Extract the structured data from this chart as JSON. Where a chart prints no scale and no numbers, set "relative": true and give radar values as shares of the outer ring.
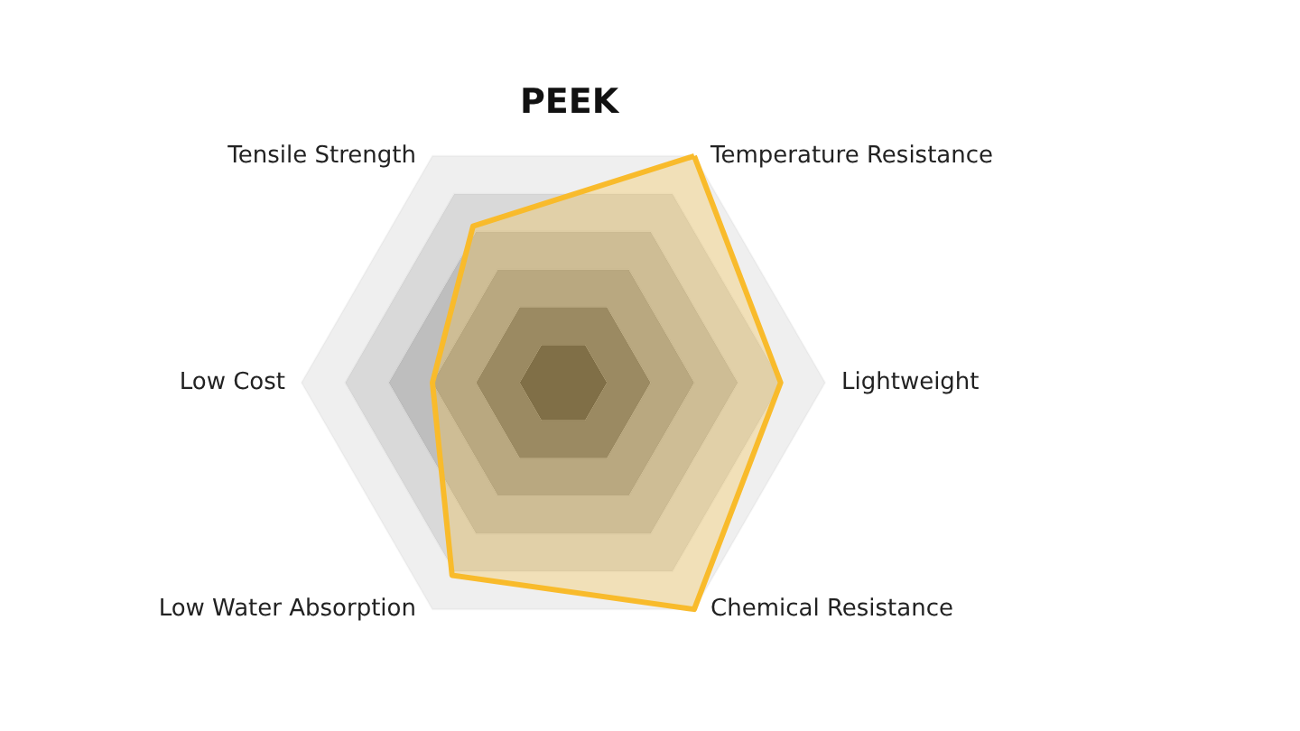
{
  "chart_data": {
    "type": "radar",
    "title": "PEEK",
    "categories": [
      "Temperature Resistance",
      "Lightweight",
      "Chemical Resistance",
      "Low Water Absorption",
      "Low Cost",
      "Tensile Strength"
    ],
    "relative": true,
    "series": [
      {
        "color": "#f9bb2c",
        "values": [
          1,
          0.83,
          1,
          0.85,
          0.5,
          0.69
        ]
      }
    ]
  }
}
